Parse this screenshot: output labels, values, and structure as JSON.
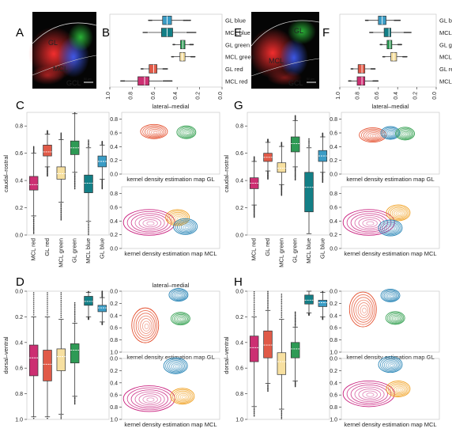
{
  "panels": {
    "A": {
      "letter": "A",
      "labels": [
        "GL",
        "MCL",
        "GCL"
      ],
      "scale": "50 µm"
    },
    "B": {
      "letter": "B"
    },
    "C": {
      "letter": "C"
    },
    "D": {
      "letter": "D"
    },
    "E": {
      "letter": "E",
      "labels": [
        "GL",
        "MCL",
        "GCL"
      ],
      "scale": "50 µm"
    },
    "F": {
      "letter": "F"
    },
    "G": {
      "letter": "G"
    },
    "H": {
      "letter": "H"
    }
  },
  "colors": {
    "gl_blue": "#3a9cc5",
    "mcl_blue": "#137f86",
    "gl_green": "#2e9a55",
    "mcl_green": "#f7e0a0",
    "gl_red": "#e05a48",
    "mcl_red": "#cc2f72",
    "red_kde": "#e4502f",
    "green_kde": "#3aa356",
    "blue_kde": "#2583b5",
    "orange_kde": "#f0a020",
    "magenta_kde": "#c9207e"
  },
  "chart_data": [
    {
      "id": "B",
      "type": "box",
      "orientation": "horizontal",
      "categories": [
        "GL blue",
        "MCL blue",
        "GL green",
        "MCL green",
        "GL red",
        "MCL red"
      ],
      "xlim": [
        1.0,
        0.0
      ],
      "xticks": [
        "1.0",
        "0.8",
        "0.6",
        "0.4",
        "0.2",
        "0.0"
      ],
      "boxes": [
        {
          "q1": 0.45,
          "median": 0.49,
          "q3": 0.53,
          "whislo": 0.35,
          "whishi": 0.62
        },
        {
          "q1": 0.44,
          "median": 0.49,
          "q3": 0.54,
          "whislo": 0.32,
          "whishi": 0.66
        },
        {
          "q1": 0.33,
          "median": 0.35,
          "q3": 0.37,
          "whislo": 0.29,
          "whishi": 0.42
        },
        {
          "q1": 0.33,
          "median": 0.355,
          "q3": 0.375,
          "whislo": 0.28,
          "whishi": 0.43
        },
        {
          "q1": 0.58,
          "median": 0.61,
          "q3": 0.65,
          "whislo": 0.53,
          "whishi": 0.7
        },
        {
          "q1": 0.65,
          "median": 0.69,
          "q3": 0.75,
          "whislo": 0.53,
          "whishi": 0.86
        }
      ]
    },
    {
      "id": "C",
      "type": "box",
      "orientation": "vertical",
      "categories": [
        "MCL red",
        "GL red",
        "MCL green",
        "GL green",
        "MCL blue",
        "GL blue"
      ],
      "ylabel": "caudal–rostral",
      "ylim": [
        0.0,
        0.9
      ],
      "yticks": [
        "0.0",
        "0.2",
        "0.4",
        "0.6",
        "0.8"
      ],
      "boxes": [
        {
          "q1": 0.33,
          "median": 0.37,
          "q3": 0.43,
          "whislo": 0.14,
          "whishi": 0.6
        },
        {
          "q1": 0.58,
          "median": 0.61,
          "q3": 0.66,
          "whislo": 0.5,
          "whishi": 0.74
        },
        {
          "q1": 0.41,
          "median": 0.45,
          "q3": 0.5,
          "whislo": 0.24,
          "whishi": 0.7
        },
        {
          "q1": 0.59,
          "median": 0.64,
          "q3": 0.69,
          "whislo": 0.46,
          "whishi": 0.89
        },
        {
          "q1": 0.31,
          "median": 0.38,
          "q3": 0.44,
          "whislo": 0.1,
          "whishi": 0.64
        },
        {
          "q1": 0.5,
          "median": 0.54,
          "q3": 0.58,
          "whislo": 0.41,
          "whishi": 0.66
        }
      ]
    },
    {
      "id": "D",
      "type": "box",
      "orientation": "vertical",
      "categories": [
        "MCL red",
        "GL red",
        "MCL green",
        "GL green",
        "MCL blue",
        "GL blue"
      ],
      "ylabel": "dorsal–ventral",
      "ylim": [
        1.0,
        0.0
      ],
      "yticks": [
        "0.0",
        "0.2",
        "0.4",
        "0.6",
        "0.8",
        "1.0"
      ],
      "boxes": [
        {
          "q1": 0.42,
          "median": 0.52,
          "q3": 0.66,
          "whislo": 0.2,
          "whishi": 0.98
        },
        {
          "q1": 0.46,
          "median": 0.57,
          "q3": 0.7,
          "whislo": 0.2,
          "whishi": 0.98
        },
        {
          "q1": 0.45,
          "median": 0.51,
          "q3": 0.62,
          "whislo": 0.22,
          "whishi": 0.96
        },
        {
          "q1": 0.41,
          "median": 0.46,
          "q3": 0.56,
          "whislo": 0.25,
          "whishi": 0.82
        },
        {
          "q1": 0.04,
          "median": 0.08,
          "q3": 0.11,
          "whislo": 0.01,
          "whishi": 0.2
        },
        {
          "q1": 0.11,
          "median": 0.13,
          "q3": 0.16,
          "whislo": 0.05,
          "whishi": 0.24
        }
      ]
    },
    {
      "id": "F",
      "type": "box",
      "orientation": "horizontal",
      "categories": [
        "GL blue",
        "MCL blue",
        "GL green",
        "MCL green",
        "GL red",
        "MCL red"
      ],
      "xlim": [
        1.0,
        0.0
      ],
      "xticks": [
        "1.0",
        "0.8",
        "0.6",
        "0.4",
        "0.2",
        "0.0"
      ],
      "boxes": [
        {
          "q1": 0.52,
          "median": 0.56,
          "q3": 0.6,
          "whislo": 0.44,
          "whishi": 0.7
        },
        {
          "q1": 0.47,
          "median": 0.49,
          "q3": 0.54,
          "whislo": 0.34,
          "whishi": 0.65
        },
        {
          "q1": 0.46,
          "median": 0.48,
          "q3": 0.51,
          "whislo": 0.4,
          "whishi": 0.56
        },
        {
          "q1": 0.41,
          "median": 0.44,
          "q3": 0.47,
          "whislo": 0.35,
          "whishi": 0.53
        },
        {
          "q1": 0.74,
          "median": 0.77,
          "q3": 0.81,
          "whislo": 0.68,
          "whishi": 0.86
        },
        {
          "q1": 0.74,
          "median": 0.77,
          "q3": 0.82,
          "whislo": 0.66,
          "whishi": 0.88
        }
      ]
    },
    {
      "id": "G",
      "type": "box",
      "orientation": "vertical",
      "categories": [
        "MCL red",
        "GL red",
        "MCL green",
        "GL green",
        "MCL blue",
        "GL blue"
      ],
      "ylabel": "caudal–rostral",
      "ylim": [
        0.0,
        0.9
      ],
      "yticks": [
        "0.0",
        "0.2",
        "0.4",
        "0.6",
        "0.8"
      ],
      "boxes": [
        {
          "q1": 0.34,
          "median": 0.38,
          "q3": 0.42,
          "whislo": 0.22,
          "whishi": 0.54
        },
        {
          "q1": 0.54,
          "median": 0.57,
          "q3": 0.6,
          "whislo": 0.47,
          "whishi": 0.68
        },
        {
          "q1": 0.46,
          "median": 0.49,
          "q3": 0.53,
          "whislo": 0.37,
          "whishi": 0.65
        },
        {
          "q1": 0.61,
          "median": 0.67,
          "q3": 0.72,
          "whislo": 0.5,
          "whishi": 0.84
        },
        {
          "q1": 0.17,
          "median": 0.35,
          "q3": 0.46,
          "whislo": 0.01,
          "whishi": 0.64
        },
        {
          "q1": 0.54,
          "median": 0.58,
          "q3": 0.62,
          "whislo": 0.46,
          "whishi": 0.72
        }
      ]
    },
    {
      "id": "H",
      "type": "box",
      "orientation": "vertical",
      "categories": [
        "MCL red",
        "GL red",
        "MCL green",
        "GL green",
        "MCL blue",
        "GL blue"
      ],
      "ylabel": "dorsal–ventral",
      "ylim": [
        1.0,
        0.0
      ],
      "yticks": [
        "0.0",
        "0.2",
        "0.4",
        "0.6",
        "0.8",
        "1.0"
      ],
      "boxes": [
        {
          "q1": 0.35,
          "median": 0.44,
          "q3": 0.55,
          "whislo": 0.2,
          "whishi": 0.9
        },
        {
          "q1": 0.31,
          "median": 0.42,
          "q3": 0.52,
          "whislo": 0.15,
          "whishi": 0.72
        },
        {
          "q1": 0.48,
          "median": 0.55,
          "q3": 0.65,
          "whislo": 0.22,
          "whishi": 0.92
        },
        {
          "q1": 0.4,
          "median": 0.45,
          "q3": 0.52,
          "whislo": 0.28,
          "whishi": 0.7
        },
        {
          "q1": 0.03,
          "median": 0.07,
          "q3": 0.1,
          "whislo": 0.0,
          "whishi": 0.17
        },
        {
          "q1": 0.07,
          "median": 0.09,
          "q3": 0.12,
          "whislo": 0.01,
          "whishi": 0.2
        }
      ]
    },
    {
      "id": "C-KDE-GL",
      "type": "heatmap",
      "title": "lateral–medial",
      "xlabel": "kernel density estimation map GL",
      "ylim": [
        0.0,
        0.9
      ],
      "yticks": [
        "0.0",
        "0.2",
        "0.4",
        "0.6",
        "0.8"
      ],
      "clusters": [
        {
          "color": "red_kde",
          "x": 0.33,
          "y": 0.62
        },
        {
          "color": "green_kde",
          "x": 0.66,
          "y": 0.61
        }
      ]
    },
    {
      "id": "C-KDE-MCL",
      "type": "heatmap",
      "xlabel": "kernel density estimation map MCL",
      "ylim": [
        0.0,
        0.9
      ],
      "yticks": [
        "0.0",
        "0.2",
        "0.4",
        "0.6",
        "0.8"
      ],
      "clusters": [
        {
          "color": "magenta_kde",
          "x": 0.28,
          "y": 0.38
        },
        {
          "color": "orange_kde",
          "x": 0.57,
          "y": 0.45
        },
        {
          "color": "blue_kde",
          "x": 0.65,
          "y": 0.32
        }
      ]
    },
    {
      "id": "D-KDE-GL",
      "type": "heatmap",
      "title": "lateral–medial",
      "xlabel": "kernel density estimation map GL",
      "ylim": [
        1.0,
        0.0
      ],
      "yticks": [
        "0.0",
        "0.2",
        "0.4",
        "0.6",
        "0.8",
        "1.0"
      ],
      "clusters": [
        {
          "color": "blue_kde",
          "x": 0.58,
          "y": 0.06
        },
        {
          "color": "red_kde",
          "x": 0.24,
          "y": 0.56
        },
        {
          "color": "green_kde",
          "x": 0.6,
          "y": 0.45
        }
      ]
    },
    {
      "id": "D-KDE-MCL",
      "type": "heatmap",
      "xlabel": "kernel density estimation map MCL",
      "ylim": [
        1.0,
        0.0
      ],
      "yticks": [
        "0.0",
        "0.2",
        "0.4",
        "0.6",
        "0.8",
        "1.0"
      ],
      "clusters": [
        {
          "color": "blue_kde",
          "x": 0.55,
          "y": 0.12
        },
        {
          "color": "magenta_kde",
          "x": 0.28,
          "y": 0.66
        },
        {
          "color": "orange_kde",
          "x": 0.62,
          "y": 0.62
        }
      ]
    },
    {
      "id": "G-KDE-GL",
      "type": "heatmap",
      "title": "lateral–medial",
      "xlabel": "kernel density estimation map GL",
      "ylim": [
        0.0,
        0.9
      ],
      "yticks": [
        "0.0",
        "0.2",
        "0.4",
        "0.6",
        "0.8"
      ],
      "clusters": [
        {
          "color": "red_kde",
          "x": 0.32,
          "y": 0.57
        },
        {
          "color": "blue_kde",
          "x": 0.5,
          "y": 0.6
        },
        {
          "color": "green_kde",
          "x": 0.65,
          "y": 0.59
        }
      ]
    },
    {
      "id": "G-KDE-MCL",
      "type": "heatmap",
      "xlabel": "kernel density estimation map MCL",
      "ylim": [
        0.0,
        0.9
      ],
      "yticks": [
        "0.0",
        "0.2",
        "0.4",
        "0.6",
        "0.8"
      ],
      "clusters": [
        {
          "color": "magenta_kde",
          "x": 0.28,
          "y": 0.38
        },
        {
          "color": "orange_kde",
          "x": 0.58,
          "y": 0.52
        },
        {
          "color": "blue_kde",
          "x": 0.5,
          "y": 0.3
        }
      ]
    },
    {
      "id": "H-KDE-GL",
      "type": "heatmap",
      "xlabel": "kernel density estimation map GL",
      "ylim": [
        1.0,
        0.0
      ],
      "yticks": [
        "0.0",
        "0.2",
        "0.4",
        "0.6",
        "0.8",
        "1.0"
      ],
      "clusters": [
        {
          "color": "blue_kde",
          "x": 0.5,
          "y": 0.07
        },
        {
          "color": "red_kde",
          "x": 0.22,
          "y": 0.3
        },
        {
          "color": "green_kde",
          "x": 0.55,
          "y": 0.44
        }
      ]
    },
    {
      "id": "H-KDE-MCL",
      "type": "heatmap",
      "xlabel": "kernel density estimation map MCL",
      "ylim": [
        1.0,
        0.0
      ],
      "yticks": [
        "0.0",
        "0.2",
        "0.4",
        "0.6",
        "0.8",
        "1.0"
      ],
      "clusters": [
        {
          "color": "blue_kde",
          "x": 0.5,
          "y": 0.1
        },
        {
          "color": "magenta_kde",
          "x": 0.28,
          "y": 0.58
        },
        {
          "color": "orange_kde",
          "x": 0.58,
          "y": 0.5
        }
      ]
    }
  ]
}
